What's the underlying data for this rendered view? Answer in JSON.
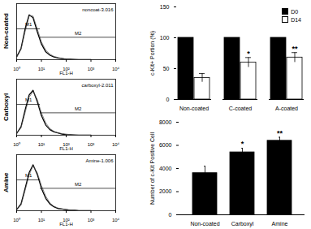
{
  "chart_data": [
    {
      "type": "line",
      "title": "Non-coated",
      "subtitle": "noncoat-3.016",
      "xlabel": "FL1-H",
      "log": "x",
      "tick_labels": "x",
      "x": [
        1,
        1.5,
        2.2,
        3.2,
        4.6,
        6.8,
        10,
        15,
        22,
        32,
        46,
        68,
        100,
        150,
        220,
        320,
        460,
        680,
        1000
      ],
      "series": [
        {
          "color": "#000000",
          "values": [
            5,
            20,
            55,
            80,
            75,
            50,
            28,
            14,
            8,
            5,
            3,
            2,
            1,
            1,
            0,
            0,
            0,
            0,
            0
          ]
        },
        {
          "color": "#555555",
          "values": [
            4,
            18,
            50,
            78,
            78,
            55,
            32,
            17,
            10,
            6,
            4,
            2,
            1,
            1,
            1,
            0,
            0,
            0,
            0
          ]
        }
      ],
      "gates": [
        {
          "label": "M1",
          "x": [
            1,
            9
          ],
          "y": 55
        },
        {
          "label": "M2",
          "x": [
            9,
            10000
          ],
          "y": 40
        }
      ],
      "xlim": [
        1,
        10000
      ],
      "xticks": [
        {
          "value": 1,
          "label": "10⁰"
        },
        {
          "value": 10,
          "label": "10¹"
        },
        {
          "value": 100,
          "label": "10²"
        },
        {
          "value": 1000,
          "label": "10³"
        },
        {
          "value": 10000,
          "label": "10⁴"
        }
      ],
      "ylim": [
        0,
        100
      ]
    },
    {
      "type": "line",
      "title": "Carboxyl",
      "subtitle": "carboxyl-2.011",
      "xlabel": "FL1-H",
      "log": "x",
      "tick_labels": "x",
      "x": [
        1,
        1.5,
        2.2,
        3.2,
        4.6,
        6.8,
        10,
        15,
        22,
        32,
        46,
        68,
        100,
        150,
        220,
        320,
        460,
        680,
        1000
      ],
      "series": [
        {
          "color": "#000000",
          "values": [
            3,
            15,
            45,
            72,
            80,
            60,
            35,
            18,
            10,
            6,
            4,
            2,
            1,
            1,
            0,
            0,
            0,
            0,
            0
          ]
        },
        {
          "color": "#555555",
          "values": [
            3,
            13,
            40,
            68,
            78,
            64,
            40,
            22,
            12,
            7,
            4,
            3,
            2,
            1,
            1,
            0,
            0,
            0,
            0
          ]
        }
      ],
      "gates": [
        {
          "label": "M1",
          "x": [
            1,
            9
          ],
          "y": 55
        },
        {
          "label": "M2",
          "x": [
            9,
            10000
          ],
          "y": 40
        }
      ],
      "xlim": [
        1,
        10000
      ],
      "xticks": [
        {
          "value": 1,
          "label": "10⁰"
        },
        {
          "value": 10,
          "label": "10¹"
        },
        {
          "value": 100,
          "label": "10²"
        },
        {
          "value": 1000,
          "label": "10³"
        },
        {
          "value": 10000,
          "label": "10⁴"
        }
      ],
      "ylim": [
        0,
        100
      ]
    },
    {
      "type": "line",
      "title": "Amine",
      "subtitle": "Amine-1.006",
      "xlabel": "FL1-H",
      "log": "x",
      "tick_labels": "x",
      "x": [
        1,
        1.5,
        2.2,
        3.2,
        4.6,
        6.8,
        10,
        15,
        22,
        32,
        46,
        68,
        100,
        150,
        220,
        320,
        460,
        680,
        1000
      ],
      "series": [
        {
          "color": "#000000",
          "values": [
            2,
            12,
            40,
            68,
            82,
            65,
            40,
            22,
            12,
            7,
            4,
            3,
            2,
            1,
            1,
            0,
            0,
            0,
            0
          ]
        },
        {
          "color": "#555555",
          "values": [
            2,
            10,
            36,
            64,
            80,
            68,
            45,
            26,
            14,
            8,
            5,
            3,
            2,
            1,
            1,
            0,
            0,
            0,
            0
          ]
        }
      ],
      "gates": [
        {
          "label": "M1",
          "x": [
            1,
            9
          ],
          "y": 55
        },
        {
          "label": "M2",
          "x": [
            9,
            10000
          ],
          "y": 40
        }
      ],
      "xlim": [
        1,
        10000
      ],
      "xticks": [
        {
          "value": 1,
          "label": "10⁰"
        },
        {
          "value": 10,
          "label": "10¹"
        },
        {
          "value": 100,
          "label": "10²"
        },
        {
          "value": 1000,
          "label": "10³"
        },
        {
          "value": 10000,
          "label": "10⁴"
        }
      ],
      "ylim": [
        0,
        100
      ]
    },
    {
      "type": "bar",
      "ylabel": "c-Kit+ Portion (%)",
      "legend": "top-right",
      "categories": [
        "Non-coated",
        "C-coated",
        "A-coated"
      ],
      "series": [
        {
          "name": "D0",
          "color": "#000000",
          "values": [
            100,
            100,
            100
          ]
        },
        {
          "name": "D14",
          "color": "#ffffff",
          "values": [
            35,
            60,
            68
          ],
          "errors": [
            7,
            8,
            8
          ]
        }
      ],
      "annotations": [
        {
          "category": "C-coated",
          "series": "D14",
          "text": "*"
        },
        {
          "category": "A-coated",
          "series": "D14",
          "text": "**"
        }
      ],
      "ylim": [
        0,
        150
      ],
      "yticks": [
        0,
        50,
        100,
        150
      ]
    },
    {
      "type": "bar",
      "ylabel": "Number of c-Kit Positive Cell",
      "categories": [
        "Non-coated",
        "Carboxyl",
        "Amine"
      ],
      "values": [
        3600,
        5400,
        6400
      ],
      "errors": [
        600,
        350,
        300
      ],
      "color": "#000000",
      "annotations": [
        {
          "category": "Carboxyl",
          "text": "*"
        },
        {
          "category": "Amine",
          "text": "**"
        }
      ],
      "ylim": [
        0,
        8000
      ],
      "yticks": [
        0,
        2000,
        4000,
        6000,
        8000
      ]
    }
  ]
}
